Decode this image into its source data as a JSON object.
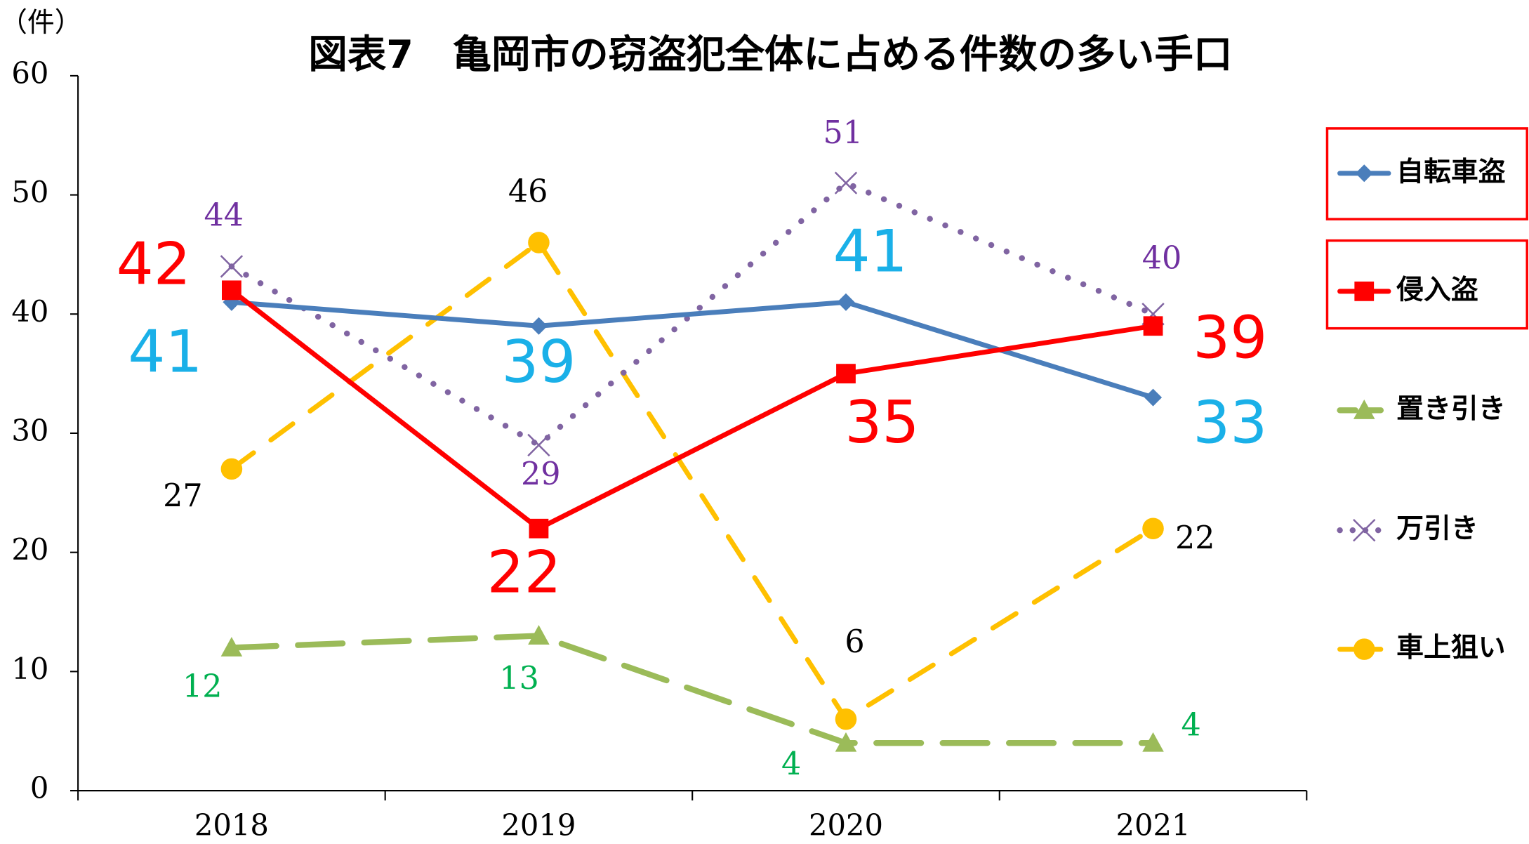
{
  "chart_data": {
    "type": "line",
    "title": "図表7　亀岡市の窃盗犯全体に占める件数の多い手口",
    "y_label": "（件）",
    "categories": [
      "2018",
      "2019",
      "2020",
      "2021"
    ],
    "ylim": [
      0,
      60
    ],
    "yticks": [
      0,
      10,
      20,
      30,
      40,
      50,
      60
    ],
    "grid": false,
    "legend": "right",
    "series": [
      {
        "name": "自転車盗",
        "color": "#4a7ebb",
        "marker": "diamond",
        "dash": "solid",
        "label_color": "#1ab0e8",
        "label_size": "large",
        "values": [
          41,
          39,
          41,
          33
        ]
      },
      {
        "name": "侵入盗",
        "color": "#ff0000",
        "marker": "square",
        "dash": "solid",
        "label_color": "#ff0000",
        "label_size": "large",
        "values": [
          42,
          22,
          35,
          39
        ]
      },
      {
        "name": "置き引き",
        "color": "#9bbb59",
        "marker": "triangle",
        "dash": "longdash",
        "label_color": "#00b050",
        "label_size": "small",
        "values": [
          12,
          13,
          4,
          4
        ]
      },
      {
        "name": "万引き",
        "color": "#8064a2",
        "marker": "x",
        "dash": "dot",
        "label_color": "#7030a0",
        "label_size": "small",
        "values": [
          44,
          29,
          51,
          40
        ]
      },
      {
        "name": "車上狙い",
        "color": "#ffc000",
        "marker": "circle",
        "dash": "dash",
        "label_color": "#000000",
        "label_size": "small",
        "values": [
          27,
          46,
          6,
          22
        ]
      }
    ]
  }
}
